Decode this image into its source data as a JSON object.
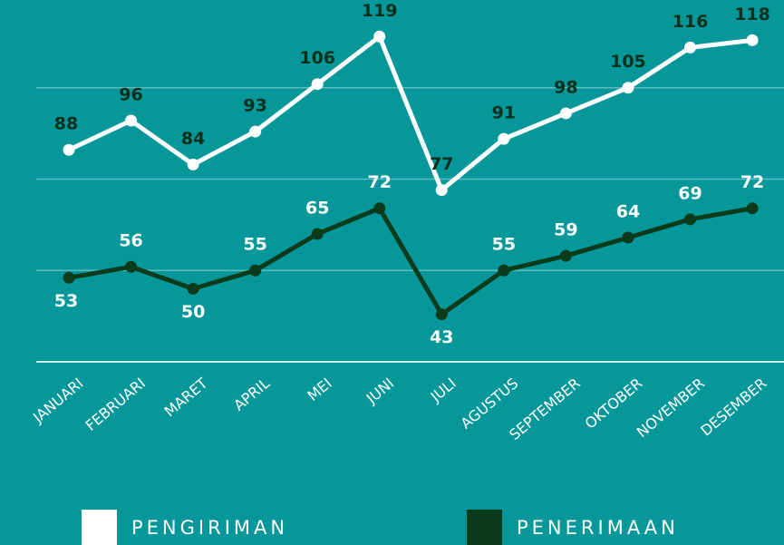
{
  "chart_data": {
    "type": "line",
    "categories": [
      "JANUARI",
      "FEBRUARI",
      "MARET",
      "APRIL",
      "MEI",
      "JUNI",
      "JULI",
      "AGUSTUS",
      "SEPTEMBER",
      "OKTOBER",
      "NOVEMBER",
      "DESEMBER"
    ],
    "series": [
      {
        "name": "PENGIRIMAN",
        "color": "#ffffff",
        "label_color": "#0b2f1a",
        "values": [
          88,
          96,
          84,
          93,
          106,
          119,
          77,
          91,
          98,
          105,
          116,
          118
        ]
      },
      {
        "name": "PENERIMAAN",
        "color": "#0c3b1c",
        "label_color": "#ffffff",
        "values": [
          53,
          56,
          50,
          55,
          65,
          72,
          43,
          55,
          59,
          64,
          69,
          72
        ]
      }
    ],
    "ylim": [
      30,
      129
    ],
    "yticks": [
      30,
      55,
      80,
      105
    ],
    "grid": true,
    "legend": "bottom"
  }
}
